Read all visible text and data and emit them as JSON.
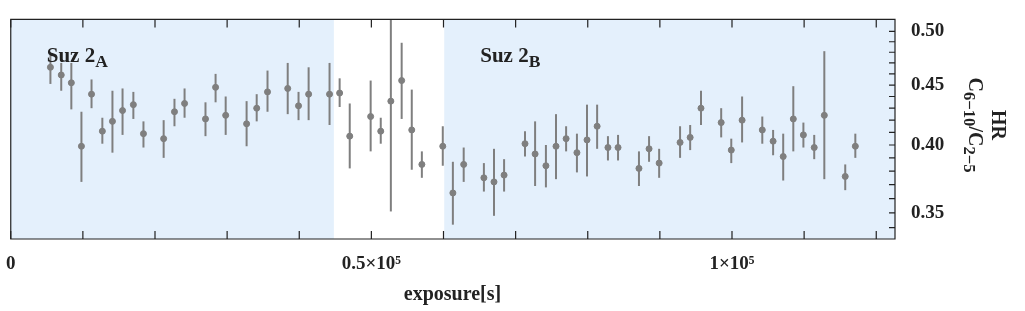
{
  "chart_data": {
    "type": "scatter",
    "xlabel": "exposure[s]",
    "ylabel": "HR\nC$_{6−10}$/C$_{2−5}$",
    "x": [
      5500,
      7000,
      8400,
      9800,
      11200,
      12700,
      14100,
      15500,
      17000,
      18400,
      21200,
      22700,
      24100,
      27000,
      28400,
      29800,
      32700,
      34100,
      35600,
      38400,
      39900,
      41300,
      44200,
      45600,
      47000,
      49900,
      51300,
      52700,
      54200,
      55600,
      57000,
      59900,
      61300,
      62800,
      65600,
      67000,
      68400,
      71300,
      72700,
      74200,
      75600,
      77000,
      78500,
      79900,
      81300,
      82800,
      84200,
      87100,
      88500,
      89900,
      92800,
      94200,
      95700,
      98500,
      99900,
      101400,
      104200,
      105700,
      107100,
      108500,
      109900,
      111400,
      112800,
      115700,
      117100
    ],
    "series": [
      {
        "color": "#7f7f7f",
        "values": [
          0.466,
          0.459,
          0.452,
          0.399,
          0.442,
          0.411,
          0.419,
          0.428,
          0.433,
          0.409,
          0.405,
          0.427,
          0.434,
          0.421,
          0.448,
          0.424,
          0.417,
          0.43,
          0.444,
          0.447,
          0.432,
          0.442,
          0.442,
          0.443,
          0.407,
          0.423,
          0.411,
          0.436,
          0.454,
          0.412,
          0.385,
          0.399,
          0.364,
          0.385,
          0.375,
          0.372,
          0.377,
          0.401,
          0.393,
          0.384,
          0.399,
          0.405,
          0.394,
          0.404,
          0.415,
          0.398,
          0.398,
          0.382,
          0.397,
          0.386,
          0.402,
          0.406,
          0.43,
          0.418,
          0.396,
          0.42,
          0.412,
          0.403,
          0.391,
          0.421,
          0.408,
          0.398,
          0.424,
          0.376,
          0.399
        ],
        "errors": [
          [
            0.451,
            0.479
          ],
          [
            0.445,
            0.47
          ],
          [
            0.429,
            0.47
          ],
          [
            0.372,
            0.427
          ],
          [
            0.43,
            0.455
          ],
          [
            0.401,
            0.422
          ],
          [
            0.394,
            0.445
          ],
          [
            0.408,
            0.447
          ],
          [
            0.421,
            0.444
          ],
          [
            0.398,
            0.419
          ],
          [
            0.39,
            0.42
          ],
          [
            0.415,
            0.438
          ],
          [
            0.422,
            0.447
          ],
          [
            0.407,
            0.435
          ],
          [
            0.435,
            0.46
          ],
          [
            0.408,
            0.44
          ],
          [
            0.399,
            0.436
          ],
          [
            0.419,
            0.442
          ],
          [
            0.427,
            0.463
          ],
          [
            0.425,
            0.47
          ],
          [
            0.42,
            0.444
          ],
          [
            0.42,
            0.466
          ],
          [
            0.416,
            0.47
          ],
          [
            0.431,
            0.456
          ],
          [
            0.382,
            0.434
          ],
          [
            0.395,
            0.454
          ],
          [
            0.401,
            0.422
          ],
          [
            0.351,
            0.512
          ],
          [
            0.421,
            0.489
          ],
          [
            0.381,
            0.446
          ],
          [
            0.375,
            0.395
          ],
          [
            0.384,
            0.415
          ],
          [
            0.342,
            0.387
          ],
          [
            0.372,
            0.398
          ],
          [
            0.365,
            0.386
          ],
          [
            0.348,
            0.397
          ],
          [
            0.365,
            0.389
          ],
          [
            0.391,
            0.411
          ],
          [
            0.369,
            0.419
          ],
          [
            0.368,
            0.4
          ],
          [
            0.374,
            0.425
          ],
          [
            0.395,
            0.415
          ],
          [
            0.379,
            0.409
          ],
          [
            0.376,
            0.433
          ],
          [
            0.397,
            0.433
          ],
          [
            0.388,
            0.407
          ],
          [
            0.388,
            0.408
          ],
          [
            0.369,
            0.395
          ],
          [
            0.387,
            0.407
          ],
          [
            0.375,
            0.397
          ],
          [
            0.39,
            0.415
          ],
          [
            0.396,
            0.416
          ],
          [
            0.416,
            0.445
          ],
          [
            0.406,
            0.43
          ],
          [
            0.386,
            0.405
          ],
          [
            0.402,
            0.44
          ],
          [
            0.401,
            0.423
          ],
          [
            0.392,
            0.412
          ],
          [
            0.373,
            0.409
          ],
          [
            0.395,
            0.449
          ],
          [
            0.398,
            0.418
          ],
          [
            0.389,
            0.408
          ],
          [
            0.374,
            0.481
          ],
          [
            0.366,
            0.385
          ],
          [
            0.39,
            0.409
          ]
        ]
      }
    ],
    "xlim": [
      0,
      122600
    ],
    "xticks": [
      0,
      {
        "value": 10000,
        "label": null
      },
      {
        "value": 20000,
        "label": null
      },
      {
        "value": 30000,
        "label": null
      },
      {
        "value": 40000,
        "label": null
      },
      {
        "value": 50000,
        "label": "0.5×10⁵"
      },
      {
        "value": 60000,
        "label": null
      },
      {
        "value": 70000,
        "label": null
      },
      {
        "value": 80000,
        "label": null
      },
      {
        "value": 90000,
        "label": null
      },
      {
        "value": 100000,
        "label": "1×10⁵"
      },
      {
        "value": 110000,
        "label": null
      },
      {
        "value": 120000,
        "label": null
      }
    ],
    "ylim": [
      0.3325,
      0.512
    ],
    "yticks": [
      {
        "value": 0.34,
        "label": null
      },
      0.35,
      {
        "value": 0.36,
        "label": null
      },
      {
        "value": 0.37,
        "label": null
      },
      {
        "value": 0.38,
        "label": null
      },
      {
        "value": 0.39,
        "label": null
      },
      {
        "value": 0.4,
        "label": "0.40"
      },
      {
        "value": 0.41,
        "label": null
      },
      {
        "value": 0.42,
        "label": null
      },
      {
        "value": 0.43,
        "label": null
      },
      {
        "value": 0.44,
        "label": null
      },
      0.45,
      {
        "value": 0.46,
        "label": null
      },
      {
        "value": 0.47,
        "label": null
      },
      {
        "value": 0.48,
        "label": null
      },
      {
        "value": 0.49,
        "label": null
      },
      {
        "value": 0.5,
        "label": "0.50"
      }
    ],
    "log": "y",
    "marker": "circle",
    "bands": [
      {
        "axis": "x",
        "from": 0,
        "to": 44800,
        "label": "Suz 2$_{A}$",
        "color": "#e4f0fc"
      },
      {
        "axis": "x",
        "from": 60100,
        "to": 122600,
        "label": "Suz 2$_{B}$",
        "color": "#e4f0fc"
      }
    ]
  }
}
